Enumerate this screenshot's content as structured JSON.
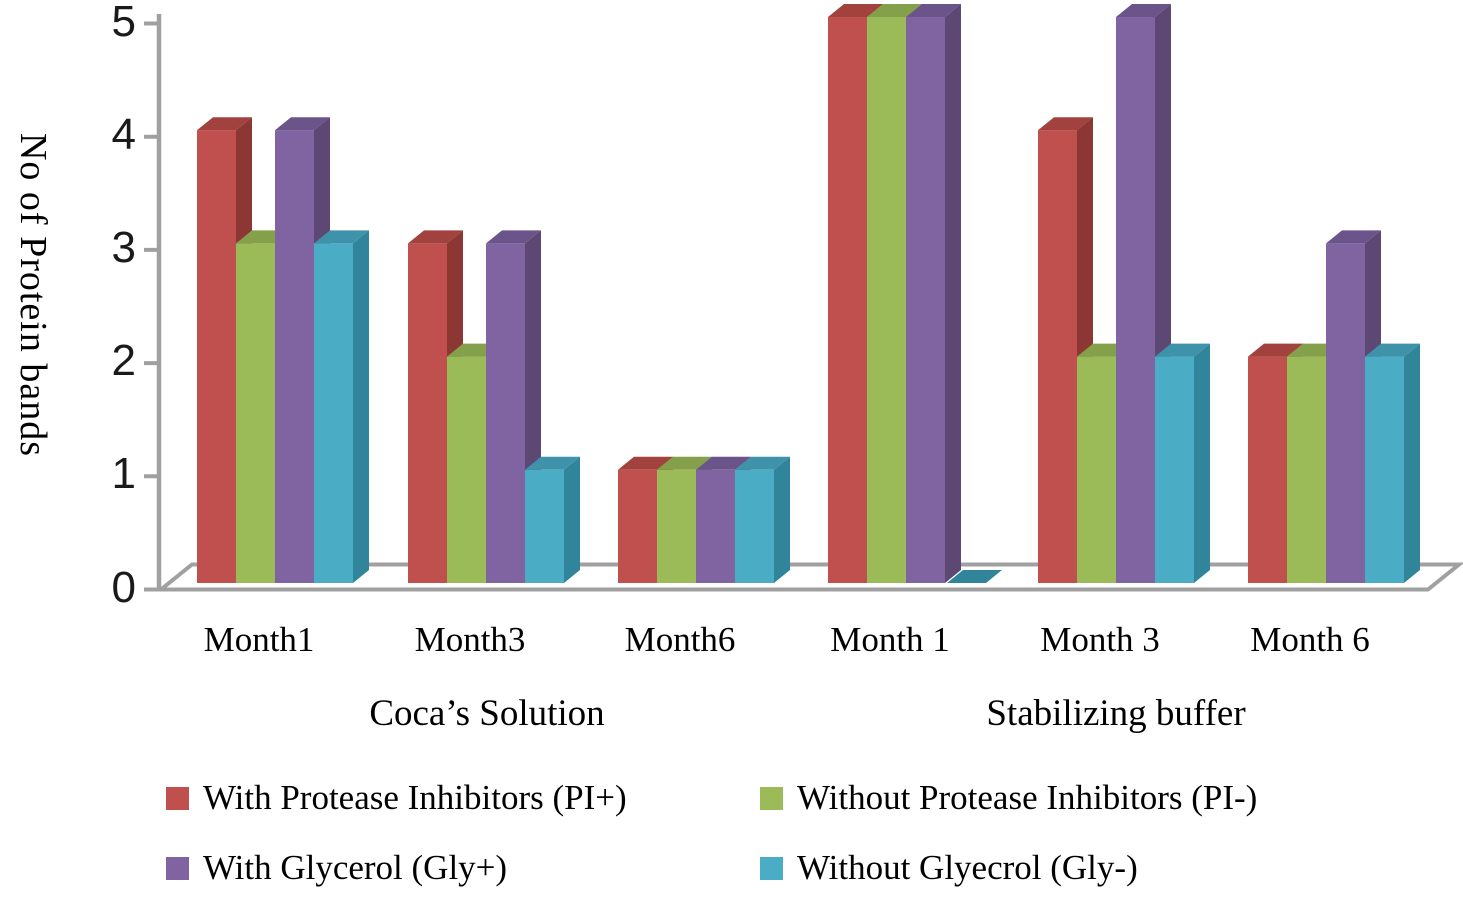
{
  "chart_data": {
    "type": "bar",
    "style": "3d-clustered-column",
    "ylabel": "No of Protein bands",
    "ylim": [
      0,
      5
    ],
    "yticks": [
      "0",
      "1",
      "2",
      "3",
      "4",
      "5"
    ],
    "grid": false,
    "legend_position": "bottom",
    "background_color": "#FFFFFF",
    "axis_color": "#A0A0A0",
    "text_color": "#000000",
    "categories": [
      "Month1",
      "Month3",
      "Month6",
      "Month 1",
      "Month 3",
      "Month 6"
    ],
    "sections": [
      {
        "label": "Coca’s Solution",
        "categories": [
          "Month1",
          "Month3",
          "Month6"
        ]
      },
      {
        "label": "Stabilizing buffer",
        "categories": [
          "Month 1",
          "Month 3",
          "Month 6"
        ]
      }
    ],
    "series": [
      {
        "name": "With Protease Inhibitors (PI+)",
        "color": "#C0504D",
        "color_top": "#A2423E",
        "color_side": "#8C3734",
        "values": [
          4,
          3,
          1,
          5,
          4,
          2
        ]
      },
      {
        "name": "Without Protease Inhibitors (PI-)",
        "color": "#9BBB59",
        "color_top": "#84A04A",
        "color_side": "#71903F",
        "values": [
          3,
          2,
          1,
          5,
          2,
          2
        ]
      },
      {
        "name": "With Glycerol (Gly+)",
        "color": "#8064A2",
        "color_top": "#6B548A",
        "color_side": "#5C4873",
        "values": [
          4,
          3,
          1,
          5,
          5,
          3
        ]
      },
      {
        "name": "Without Glyecrol (Gly-)",
        "color": "#4BACC6",
        "color_top": "#3E93AA",
        "color_side": "#31859B",
        "values": [
          3,
          1,
          1,
          0,
          2,
          2
        ]
      }
    ]
  }
}
